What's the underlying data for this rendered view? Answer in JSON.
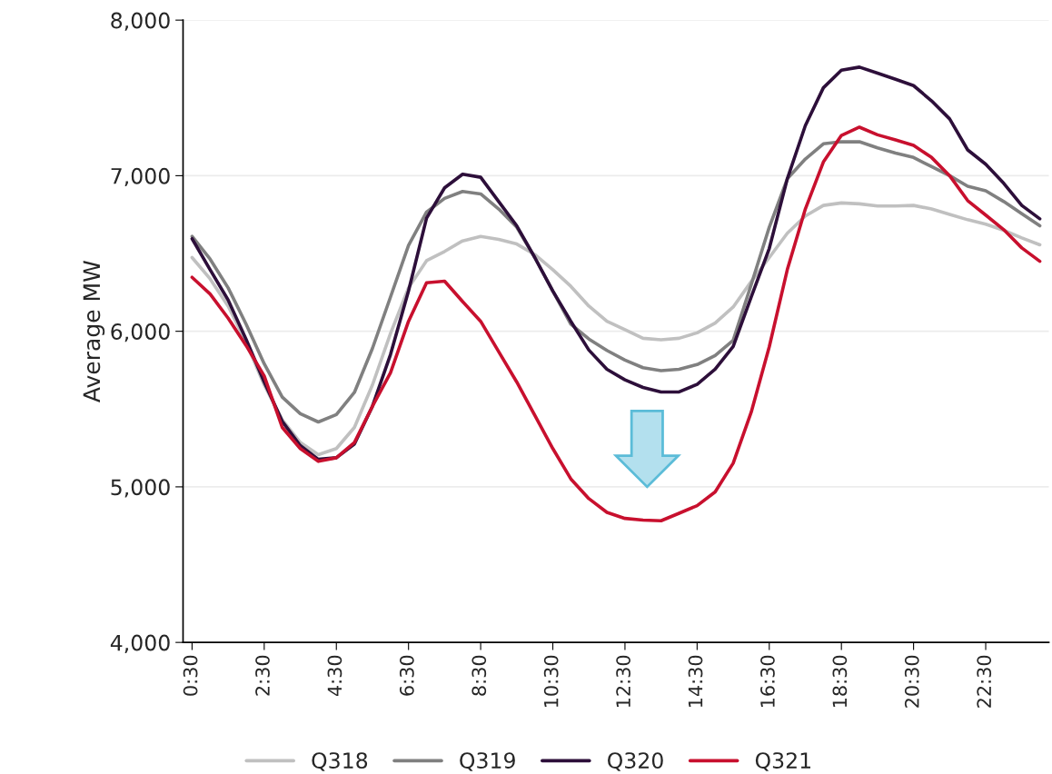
{
  "chart_data": {
    "type": "line",
    "ylabel": "Average MW",
    "categories": [
      "0:30",
      null,
      null,
      null,
      "2:30",
      null,
      null,
      null,
      "4:30",
      null,
      null,
      null,
      "6:30",
      null,
      null,
      null,
      "8:30",
      null,
      null,
      null,
      "10:30",
      null,
      null,
      null,
      "12:30",
      null,
      null,
      null,
      "14:30",
      null,
      null,
      null,
      "16:30",
      null,
      null,
      null,
      "18:30",
      null,
      null,
      null,
      "20:30",
      null,
      null,
      null,
      "22:30",
      null,
      null,
      null
    ],
    "series": [
      {
        "name": "Q318",
        "color": "#c0c0c0",
        "values": [
          6474,
          6337,
          6162,
          5928,
          5655,
          5431,
          5285,
          5207,
          5246,
          5382,
          5655,
          5986,
          6279,
          6454,
          6513,
          6581,
          6610,
          6591,
          6561,
          6493,
          6396,
          6289,
          6162,
          6064,
          6010,
          5955,
          5945,
          5955,
          5990,
          6053,
          6156,
          6320,
          6474,
          6630,
          6741,
          6809,
          6825,
          6819,
          6805,
          6805,
          6809,
          6786,
          6751,
          6717,
          6688,
          6649,
          6600,
          6556
        ]
      },
      {
        "name": "Q319",
        "color": "#808080",
        "values": [
          6610,
          6464,
          6279,
          6045,
          5791,
          5577,
          5470,
          5417,
          5464,
          5607,
          5890,
          6220,
          6552,
          6766,
          6854,
          6899,
          6883,
          6786,
          6669,
          6474,
          6259,
          6045,
          5950,
          5877,
          5815,
          5766,
          5747,
          5756,
          5786,
          5844,
          5942,
          6300,
          6669,
          6980,
          7107,
          7205,
          7218,
          7218,
          7179,
          7146,
          7117,
          7058,
          7000,
          6932,
          6903,
          6834,
          6756,
          6678
        ]
      },
      {
        "name": "Q320",
        "color": "#2d0f3a",
        "values": [
          6595,
          6396,
          6201,
          5947,
          5674,
          5421,
          5265,
          5177,
          5187,
          5275,
          5518,
          5850,
          6259,
          6727,
          6922,
          7010,
          6990,
          6834,
          6678,
          6474,
          6259,
          6064,
          5879,
          5756,
          5688,
          5639,
          5610,
          5610,
          5659,
          5756,
          5903,
          6220,
          6532,
          6980,
          7322,
          7565,
          7678,
          7698,
          7659,
          7620,
          7579,
          7481,
          7365,
          7166,
          7074,
          6951,
          6809,
          6723
        ]
      },
      {
        "name": "Q321",
        "color": "#c8102e",
        "values": [
          6347,
          6240,
          6084,
          5908,
          5713,
          5382,
          5246,
          5164,
          5187,
          5285,
          5518,
          5733,
          6064,
          6312,
          6322,
          6191,
          6064,
          5869,
          5674,
          5460,
          5246,
          5051,
          4924,
          4836,
          4797,
          4786,
          4782,
          4830,
          4879,
          4967,
          5152,
          5480,
          5900,
          6396,
          6786,
          7088,
          7259,
          7312,
          7263,
          7230,
          7195,
          7117,
          7000,
          6840,
          6747,
          6653,
          6536,
          6450
        ]
      }
    ],
    "ylim": [
      4000,
      8000
    ],
    "yticks": [
      {
        "value": 4000,
        "label": "4,000"
      },
      {
        "value": 5000,
        "label": "5,000"
      },
      {
        "value": 6000,
        "label": "6,000"
      },
      {
        "value": 7000,
        "label": "7,000"
      },
      {
        "value": 8000,
        "label": "8,000"
      }
    ],
    "grid": "y",
    "legend": "bottom",
    "marker": "none",
    "line_style": "solid"
  }
}
